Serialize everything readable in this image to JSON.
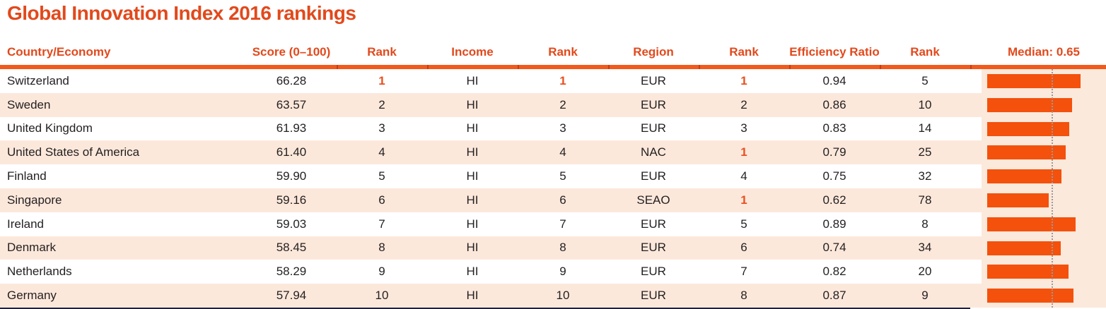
{
  "title": "Global Innovation Index 2016 rankings",
  "colors": {
    "accent_orange_red": "#e2491c",
    "rule_orange": "#f2591a",
    "rule_separator": "#c63d12",
    "bar_orange": "#f4510c",
    "row_stripe_peach": "#fce8db",
    "chart_background_peach": "#fbe9dc",
    "median_line_gray": "#9a9a9a",
    "body_text": "#231f20",
    "bottom_rule_dark": "#20213a"
  },
  "table": {
    "column_keys": [
      "country",
      "score",
      "rank",
      "income",
      "income_rank",
      "region",
      "region_rank",
      "efficiency_ratio",
      "efficiency_rank"
    ],
    "columns": [
      "Country/Economy",
      "Score (0–100)",
      "Rank",
      "Income",
      "Rank",
      "Region",
      "Rank",
      "Efficiency Ratio",
      "Rank",
      "Median: 0.65"
    ],
    "rows": [
      {
        "country": "Switzerland",
        "score": "66.28",
        "rank": "1",
        "income": "HI",
        "income_rank": "1",
        "region": "EUR",
        "region_rank": "1",
        "efficiency_ratio": "0.94",
        "efficiency_rank": "5",
        "bar": 0.94,
        "top_ranks": [
          "rank",
          "income_rank",
          "region_rank"
        ]
      },
      {
        "country": "Sweden",
        "score": "63.57",
        "rank": "2",
        "income": "HI",
        "income_rank": "2",
        "region": "EUR",
        "region_rank": "2",
        "efficiency_ratio": "0.86",
        "efficiency_rank": "10",
        "bar": 0.86,
        "top_ranks": []
      },
      {
        "country": "United Kingdom",
        "score": "61.93",
        "rank": "3",
        "income": "HI",
        "income_rank": "3",
        "region": "EUR",
        "region_rank": "3",
        "efficiency_ratio": "0.83",
        "efficiency_rank": "14",
        "bar": 0.83,
        "top_ranks": []
      },
      {
        "country": "United States of America",
        "score": "61.40",
        "rank": "4",
        "income": "HI",
        "income_rank": "4",
        "region": "NAC",
        "region_rank": "1",
        "efficiency_ratio": "0.79",
        "efficiency_rank": "25",
        "bar": 0.79,
        "top_ranks": [
          "region_rank"
        ]
      },
      {
        "country": "Finland",
        "score": "59.90",
        "rank": "5",
        "income": "HI",
        "income_rank": "5",
        "region": "EUR",
        "region_rank": "4",
        "efficiency_ratio": "0.75",
        "efficiency_rank": "32",
        "bar": 0.75,
        "top_ranks": []
      },
      {
        "country": "Singapore",
        "score": "59.16",
        "rank": "6",
        "income": "HI",
        "income_rank": "6",
        "region": "SEAO",
        "region_rank": "1",
        "efficiency_ratio": "0.62",
        "efficiency_rank": "78",
        "bar": 0.62,
        "top_ranks": [
          "region_rank"
        ]
      },
      {
        "country": "Ireland",
        "score": "59.03",
        "rank": "7",
        "income": "HI",
        "income_rank": "7",
        "region": "EUR",
        "region_rank": "5",
        "efficiency_ratio": "0.89",
        "efficiency_rank": "8",
        "bar": 0.89,
        "top_ranks": []
      },
      {
        "country": "Denmark",
        "score": "58.45",
        "rank": "8",
        "income": "HI",
        "income_rank": "8",
        "region": "EUR",
        "region_rank": "6",
        "efficiency_ratio": "0.74",
        "efficiency_rank": "34",
        "bar": 0.74,
        "top_ranks": []
      },
      {
        "country": "Netherlands",
        "score": "58.29",
        "rank": "9",
        "income": "HI",
        "income_rank": "9",
        "region": "EUR",
        "region_rank": "7",
        "efficiency_ratio": "0.82",
        "efficiency_rank": "20",
        "bar": 0.82,
        "top_ranks": []
      },
      {
        "country": "Germany",
        "score": "57.94",
        "rank": "10",
        "income": "HI",
        "income_rank": "10",
        "region": "EUR",
        "region_rank": "8",
        "efficiency_ratio": "0.87",
        "efficiency_rank": "9",
        "bar": 0.87,
        "top_ranks": []
      }
    ]
  },
  "chart_data": {
    "type": "table",
    "title": "Global Innovation Index 2016 rankings",
    "columns": [
      "Country/Economy",
      "Score (0–100)",
      "Rank",
      "Income",
      "Rank",
      "Region",
      "Rank",
      "Efficiency Ratio",
      "Rank",
      "Efficiency Ratio bar (Median: 0.65)"
    ],
    "rows": [
      [
        "Switzerland",
        "66.28",
        "1",
        "HI",
        "1",
        "EUR",
        "1",
        "0.94",
        "5"
      ],
      [
        "Sweden",
        "63.57",
        "2",
        "HI",
        "2",
        "EUR",
        "2",
        "0.86",
        "10"
      ],
      [
        "United Kingdom",
        "61.93",
        "3",
        "HI",
        "3",
        "EUR",
        "3",
        "0.83",
        "14"
      ],
      [
        "United States of America",
        "61.40",
        "4",
        "HI",
        "4",
        "NAC",
        "1",
        "0.79",
        "25"
      ],
      [
        "Finland",
        "59.90",
        "5",
        "HI",
        "5",
        "EUR",
        "4",
        "0.75",
        "32"
      ],
      [
        "Singapore",
        "59.16",
        "6",
        "HI",
        "6",
        "SEAO",
        "1",
        "0.62",
        "78"
      ],
      [
        "Ireland",
        "59.03",
        "7",
        "HI",
        "7",
        "EUR",
        "5",
        "0.89",
        "8"
      ],
      [
        "Denmark",
        "58.45",
        "8",
        "HI",
        "8",
        "EUR",
        "6",
        "0.74",
        "34"
      ],
      [
        "Netherlands",
        "58.29",
        "9",
        "HI",
        "9",
        "EUR",
        "7",
        "0.82",
        "20"
      ],
      [
        "Germany",
        "57.94",
        "10",
        "HI",
        "10",
        "EUR",
        "8",
        "0.87",
        "9"
      ]
    ],
    "bar_column": {
      "type": "bar",
      "orientation": "horizontal",
      "label": "Efficiency Ratio",
      "median_label": "Median: 0.65",
      "median": 0.65,
      "categories": [
        "Switzerland",
        "Sweden",
        "United Kingdom",
        "United States of America",
        "Finland",
        "Singapore",
        "Ireland",
        "Denmark",
        "Netherlands",
        "Germany"
      ],
      "values": [
        0.94,
        0.86,
        0.83,
        0.79,
        0.75,
        0.62,
        0.89,
        0.74,
        0.82,
        0.87
      ],
      "xlim": [
        0,
        1.2
      ]
    }
  }
}
